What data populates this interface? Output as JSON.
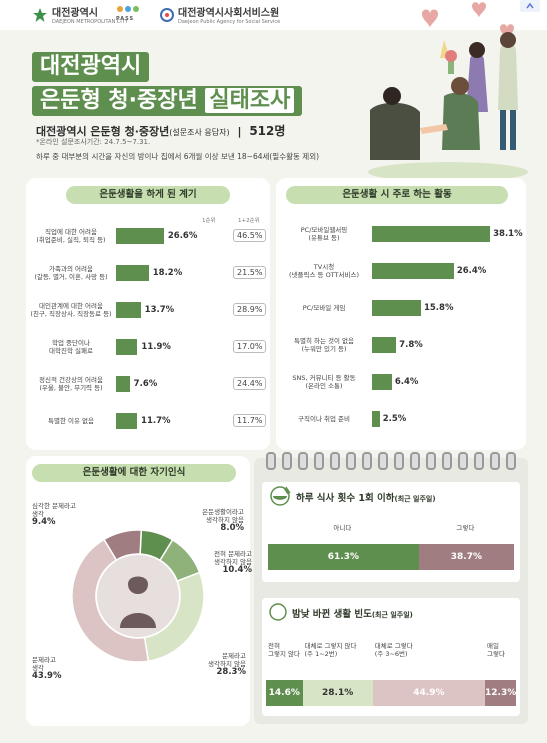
{
  "header": {
    "logo1_name": "대전광역시",
    "logo1_sub": "DAEJEON METROPOLITAN CITY",
    "logo2_name": "PASS",
    "logo3_name": "대전광역시사회서비스원",
    "logo3_sub": "Daejeon Public Agency for Social Service"
  },
  "title": {
    "line1": "대전광역시",
    "line2a": "은둔형 청·중장년",
    "line2b": "실태조사"
  },
  "survey": {
    "subtitle": "대전광역시 은둔형 청·중장년",
    "subtitle_note": "(설문조사 응답자)",
    "separator": "|",
    "count": "512명",
    "period": "*온라인 설문조사기간: 24.7.5~7.31.",
    "description": "하루 중 대부분의 시간을 자신의 방이나 집에서 6개월 이상 보낸 18~64세(필수활동 제외)"
  },
  "chart_data": [
    {
      "type": "bar",
      "title": "은둔생활을 하게 된 계기",
      "series_names": [
        "1순위",
        "1+2순위"
      ],
      "categories": [
        [
          "직업에 대한 어려움",
          "(취업준비, 실직, 퇴직 등)"
        ],
        [
          "가족과의 어려움",
          "(갈등, 별거, 이혼, 사망 등)"
        ],
        [
          "대인관계에 대한 어려움",
          "(친구, 직장상사, 직장동료 등)"
        ],
        [
          "학업 중단이나",
          "대학진학 실패로"
        ],
        [
          "정신적 건강상의 어려움",
          "(우울, 불안, 무기력 등)"
        ],
        [
          "특별한 이유 없음"
        ]
      ],
      "values_rank1": [
        26.6,
        18.2,
        13.7,
        11.9,
        7.6,
        11.7
      ],
      "values_rank12": [
        46.5,
        21.5,
        28.9,
        17.0,
        24.4,
        11.7
      ],
      "labels_rank1": [
        "26.6%",
        "18.2%",
        "13.7%",
        "11.9%",
        "7.6%",
        "11.7%"
      ],
      "labels_rank12": [
        "46.5%",
        "21.5%",
        "28.9%",
        "17.0%",
        "24.4%",
        "11.7%"
      ],
      "unit": "%"
    },
    {
      "type": "bar",
      "title": "은둔생활 시 주로 하는 활동",
      "categories": [
        [
          "PC/모바일웹서핑",
          "(유튜브 등)"
        ],
        [
          "TV시청",
          "(넷플릭스 등 OTT서비스)"
        ],
        [
          "PC/모바일 게임"
        ],
        [
          "특별히 하는 것이 없음",
          "(누워만 있기 등)"
        ],
        [
          "SNS, 커뮤니티 등 활동",
          "(온라인 소통)"
        ],
        [
          "구직이나 취업 준비"
        ]
      ],
      "values": [
        38.1,
        26.4,
        15.8,
        7.8,
        6.4,
        2.5
      ],
      "labels": [
        "38.1%",
        "26.4%",
        "15.8%",
        "7.8%",
        "6.4%",
        "2.5%"
      ],
      "unit": "%"
    },
    {
      "type": "pie",
      "title": "은둔생활에 대한 자기인식",
      "slices": [
        {
          "label": [
            "은둔생활이라고",
            "생각하지 않음"
          ],
          "value": 8.0,
          "display": "8.0%",
          "color": "#5f8f4e"
        },
        {
          "label": [
            "전혀 문제라고",
            "생각하지 않음"
          ],
          "value": 10.4,
          "display": "10.4%",
          "color": "#8fb27b"
        },
        {
          "label": [
            "문제라고",
            "생각하지 않음"
          ],
          "value": 28.3,
          "display": "28.3%",
          "color": "#d7e4c6"
        },
        {
          "label": [
            "문제라고",
            "생각"
          ],
          "value": 43.9,
          "display": "43.9%",
          "color": "#dcc4c4"
        },
        {
          "label": [
            "심각한 문제라고",
            "생각"
          ],
          "value": 9.4,
          "display": "9.4%",
          "color": "#a07d80"
        }
      ]
    },
    {
      "type": "bar",
      "stacked": true,
      "title": "하루 식사 횟수 1회 이하",
      "title_note": "(최근 일주일)",
      "segments": [
        {
          "label": "아니다",
          "value": 61.3,
          "display": "61.3%",
          "color": "#5f8f4e"
        },
        {
          "label": "그렇다",
          "value": 38.7,
          "display": "38.7%",
          "color": "#a07d80"
        }
      ]
    },
    {
      "type": "bar",
      "stacked": true,
      "title": "밤낮 바뀐 생활 빈도",
      "title_note": "(최근 일주일)",
      "segments": [
        {
          "label": [
            "전혀",
            "그렇지 않다"
          ],
          "value": 14.6,
          "display": "14.6%",
          "color": "#5f8f4e"
        },
        {
          "label": [
            "대체로 그렇지 않다",
            "(주 1~2번)"
          ],
          "value": 28.1,
          "display": "28.1%",
          "color": "#d7e4c6"
        },
        {
          "label": [
            "대체로 그렇다",
            "(주 3~6번)"
          ],
          "value": 44.9,
          "display": "44.9%",
          "color": "#dcc4c4"
        },
        {
          "label": [
            "매일",
            "그렇다"
          ],
          "value": 12.3,
          "display": "12.3%",
          "color": "#a07d80"
        }
      ]
    }
  ]
}
